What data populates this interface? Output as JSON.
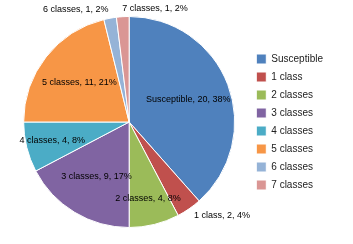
{
  "chart_data": {
    "type": "pie",
    "categories": [
      "Susceptible",
      "1 class",
      "2 classes",
      "3 classes",
      "4 classes",
      "5 classes",
      "6 classes",
      "7 classes"
    ],
    "values": [
      20,
      2,
      4,
      9,
      4,
      11,
      1,
      1
    ],
    "value_labels": [
      "Susceptible, 20, 38%",
      "1 class, 2, 4%",
      "2 classes, 4, 8%",
      "3 classes, 9, 17%",
      "4 classes, 4, 8%",
      "5 classes, 11, 21%",
      "6 classes, 1, 2%",
      "7 classes, 1, 2%"
    ],
    "colors": [
      "#4f81bd",
      "#c0504d",
      "#9bbb59",
      "#8064a2",
      "#4bacc6",
      "#f79646",
      "#95b3d7",
      "#da9694"
    ],
    "data_labels": true,
    "legend": "right"
  }
}
